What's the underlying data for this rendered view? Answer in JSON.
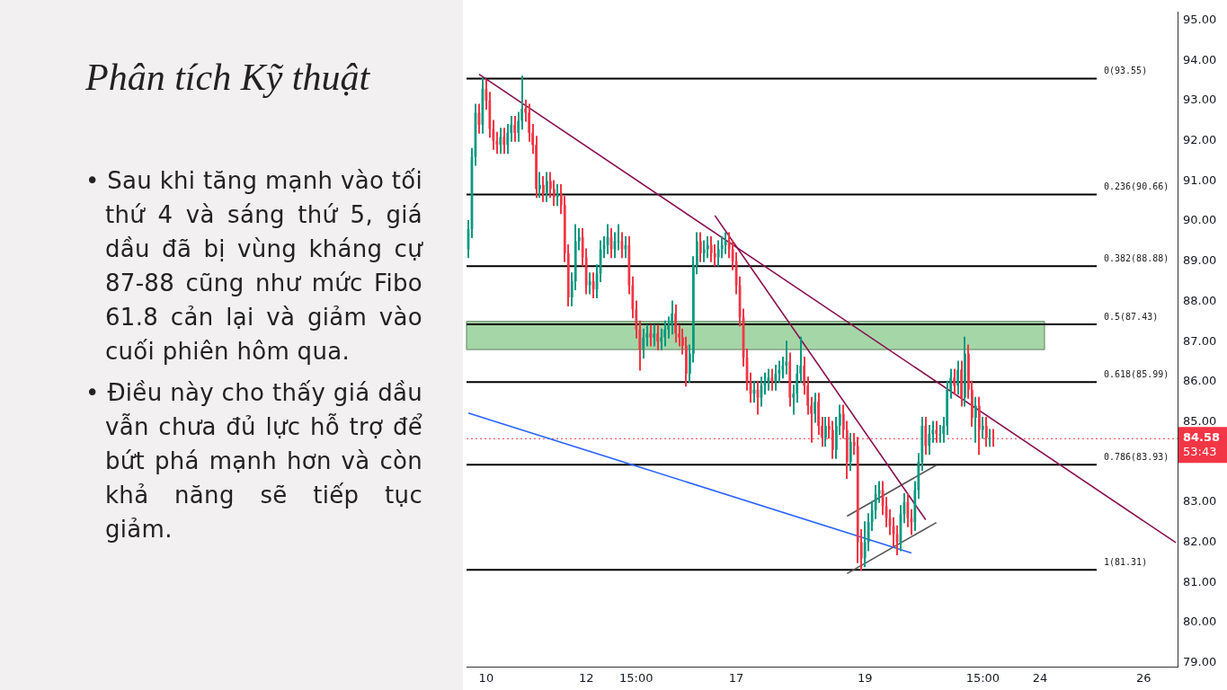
{
  "chart_data": {
    "type": "candlestick",
    "title": "Phân tích Kỹ thuật",
    "annotations": [
      "• Sau khi tăng mạnh vào tối thứ 4 và sáng thứ 5, giá dầu đã bị vùng kháng cự 87-88 cũng như mức Fibo 61.8 cản lại và giảm vào cuối phiên hôm qua.",
      "• Điều này cho thấy giá dầu vẫn chưa đủ lực hỗ trợ để bứt phá mạnh hơn và còn khả năng sẽ tiếp tục giảm."
    ],
    "categories": [
      null,
      null,
      null,
      null,
      null,
      "10",
      null,
      null,
      null,
      null,
      null,
      null,
      null,
      null,
      null,
      null,
      null,
      null,
      null,
      null,
      null,
      null,
      null,
      null,
      null,
      null,
      null,
      null,
      null,
      null,
      null,
      null,
      null,
      "12",
      null,
      null,
      null,
      null,
      null,
      null,
      null,
      null,
      null,
      null,
      null,
      null,
      null,
      "15:00",
      null,
      null,
      null,
      null,
      null,
      null,
      null,
      null,
      null,
      null,
      null,
      null,
      null,
      null,
      null,
      null,
      null,
      null,
      null,
      null,
      null,
      null,
      null,
      null,
      null,
      null,
      null,
      "17",
      null,
      null,
      null,
      null,
      null,
      null,
      null,
      null,
      null,
      null,
      null,
      null,
      null,
      null,
      null,
      null,
      null,
      null,
      null,
      null,
      null,
      null,
      null,
      null,
      null,
      null,
      null,
      null,
      null,
      null,
      null,
      null,
      null,
      null,
      null,
      "19",
      null,
      null,
      null,
      null,
      null,
      null,
      null,
      null,
      null,
      null,
      null,
      null,
      null,
      null,
      null,
      null,
      null,
      null,
      null,
      null,
      null,
      null,
      null,
      null,
      null,
      null,
      null,
      null,
      null,
      null,
      null,
      null,
      "15:00",
      null,
      null,
      null,
      null,
      null,
      null,
      null,
      null,
      null,
      null,
      null,
      null,
      null,
      null,
      null,
      "24",
      null,
      null,
      null,
      null,
      null,
      null,
      null,
      null,
      null,
      null,
      null,
      null,
      null,
      null,
      null,
      null,
      null,
      null,
      null,
      null,
      null,
      null,
      null,
      null,
      null,
      null,
      null,
      null,
      "26",
      null,
      null,
      null,
      null,
      null,
      null,
      null,
      null,
      null
    ],
    "ohlc": [
      [
        89.3,
        90.0,
        89.1,
        89.8
      ],
      [
        89.8,
        91.8,
        89.6,
        91.6
      ],
      [
        91.6,
        92.9,
        91.4,
        92.7
      ],
      [
        92.7,
        92.9,
        92.2,
        92.4
      ],
      [
        92.4,
        93.55,
        92.2,
        93.3
      ],
      [
        93.3,
        93.5,
        92.8,
        93.0
      ],
      [
        93.0,
        93.2,
        92.1,
        92.3
      ],
      [
        92.3,
        92.5,
        91.8,
        92.0
      ],
      [
        92.0,
        92.2,
        91.7,
        91.9
      ],
      [
        91.9,
        92.3,
        91.7,
        92.1
      ],
      [
        92.1,
        92.3,
        91.7,
        91.9
      ],
      [
        91.9,
        92.4,
        91.7,
        92.2
      ],
      [
        92.2,
        92.6,
        92.0,
        92.4
      ],
      [
        92.4,
        92.6,
        92.0,
        92.2
      ],
      [
        92.2,
        92.7,
        92.0,
        92.5
      ],
      [
        92.5,
        93.6,
        92.3,
        92.8
      ],
      [
        92.8,
        93.0,
        92.5,
        92.7
      ],
      [
        92.7,
        92.9,
        92.0,
        92.2
      ],
      [
        92.2,
        92.4,
        91.7,
        91.9
      ],
      [
        91.9,
        92.1,
        90.6,
        90.8
      ],
      [
        90.8,
        91.2,
        90.6,
        90.9
      ],
      [
        90.9,
        91.1,
        90.5,
        90.7
      ],
      [
        90.7,
        91.2,
        90.5,
        91.0
      ],
      [
        91.0,
        91.2,
        90.6,
        90.8
      ],
      [
        90.8,
        91.0,
        90.4,
        90.6
      ],
      [
        90.6,
        90.9,
        90.4,
        90.7
      ],
      [
        90.7,
        90.9,
        90.2,
        90.4
      ],
      [
        90.4,
        90.6,
        89.0,
        89.2
      ],
      [
        89.2,
        89.4,
        87.9,
        88.1
      ],
      [
        88.1,
        88.7,
        87.9,
        88.5
      ],
      [
        88.5,
        89.9,
        88.3,
        89.5
      ],
      [
        89.5,
        89.8,
        89.3,
        89.6
      ],
      [
        89.6,
        89.8,
        88.9,
        89.1
      ],
      [
        89.1,
        89.3,
        88.2,
        88.4
      ],
      [
        88.4,
        88.7,
        88.2,
        88.5
      ],
      [
        88.5,
        88.7,
        88.1,
        88.3
      ],
      [
        88.3,
        88.9,
        88.1,
        88.7
      ],
      [
        88.7,
        89.5,
        88.5,
        89.3
      ],
      [
        89.3,
        89.6,
        89.1,
        89.4
      ],
      [
        89.4,
        89.9,
        89.2,
        89.6
      ],
      [
        89.6,
        89.8,
        89.1,
        89.3
      ],
      [
        89.3,
        89.7,
        89.1,
        89.5
      ],
      [
        89.5,
        89.9,
        89.3,
        89.5
      ],
      [
        89.5,
        89.7,
        89.1,
        89.3
      ],
      [
        89.3,
        89.6,
        89.1,
        89.4
      ],
      [
        89.4,
        89.6,
        88.2,
        88.4
      ],
      [
        88.4,
        88.6,
        87.6,
        87.8
      ],
      [
        87.8,
        88.0,
        87.1,
        87.3
      ],
      [
        87.3,
        87.5,
        86.3,
        86.8
      ],
      [
        86.8,
        87.3,
        86.6,
        87.1
      ],
      [
        87.1,
        87.4,
        86.9,
        87.2
      ],
      [
        87.2,
        87.4,
        86.9,
        87.1
      ],
      [
        87.1,
        87.4,
        86.9,
        87.2
      ],
      [
        87.2,
        87.4,
        86.8,
        87.0
      ],
      [
        87.0,
        87.3,
        86.8,
        87.1
      ],
      [
        87.1,
        87.5,
        86.9,
        87.3
      ],
      [
        87.3,
        87.6,
        87.1,
        87.4
      ],
      [
        87.4,
        88.0,
        87.2,
        87.7
      ],
      [
        87.7,
        87.9,
        87.0,
        87.2
      ],
      [
        87.2,
        87.4,
        86.9,
        87.1
      ],
      [
        87.1,
        87.3,
        86.7,
        86.9
      ],
      [
        86.9,
        87.1,
        85.9,
        86.2
      ],
      [
        86.2,
        86.9,
        86.0,
        86.7
      ],
      [
        86.7,
        89.1,
        86.5,
        88.9
      ],
      [
        88.9,
        89.7,
        88.7,
        89.5
      ],
      [
        89.5,
        89.7,
        89.0,
        89.2
      ],
      [
        89.2,
        89.5,
        89.0,
        89.3
      ],
      [
        89.3,
        89.6,
        89.1,
        89.4
      ],
      [
        89.4,
        89.6,
        89.0,
        89.2
      ],
      [
        89.2,
        89.4,
        88.9,
        89.1
      ],
      [
        89.1,
        89.5,
        88.9,
        89.3
      ],
      [
        89.3,
        89.6,
        89.1,
        89.4
      ],
      [
        89.4,
        89.7,
        89.2,
        89.5
      ],
      [
        89.5,
        89.7,
        89.1,
        89.3
      ],
      [
        89.3,
        89.5,
        88.8,
        89.0
      ],
      [
        89.0,
        89.2,
        88.2,
        88.4
      ],
      [
        88.4,
        88.6,
        87.4,
        87.6
      ],
      [
        87.6,
        87.8,
        86.4,
        86.6
      ],
      [
        86.6,
        86.8,
        85.8,
        86.0
      ],
      [
        86.0,
        86.2,
        85.5,
        85.7
      ],
      [
        85.7,
        86.0,
        85.5,
        85.8
      ],
      [
        85.8,
        86.0,
        85.2,
        85.6
      ],
      [
        85.6,
        86.1,
        85.4,
        85.9
      ],
      [
        85.9,
        86.2,
        85.7,
        86.0
      ],
      [
        86.0,
        86.3,
        85.8,
        86.1
      ],
      [
        86.1,
        86.3,
        85.8,
        86.0
      ],
      [
        86.0,
        86.4,
        85.8,
        86.2
      ],
      [
        86.2,
        86.5,
        86.0,
        86.3
      ],
      [
        86.3,
        86.6,
        86.1,
        86.4
      ],
      [
        86.4,
        87.0,
        86.2,
        86.5
      ],
      [
        86.5,
        86.7,
        85.4,
        85.6
      ],
      [
        85.6,
        85.9,
        85.2,
        85.7
      ],
      [
        85.7,
        86.4,
        85.5,
        86.2
      ],
      [
        86.2,
        87.1,
        86.0,
        86.4
      ],
      [
        86.4,
        86.6,
        85.7,
        85.9
      ],
      [
        85.9,
        86.1,
        85.2,
        85.4
      ],
      [
        85.4,
        85.6,
        84.5,
        85.2
      ],
      [
        85.2,
        85.7,
        85.0,
        85.5
      ],
      [
        85.5,
        85.7,
        84.7,
        84.9
      ],
      [
        84.9,
        85.1,
        84.4,
        84.6
      ],
      [
        84.6,
        85.1,
        84.4,
        84.9
      ],
      [
        84.9,
        85.1,
        84.6,
        84.8
      ],
      [
        84.8,
        85.0,
        84.1,
        84.3
      ],
      [
        84.3,
        85.1,
        84.1,
        84.9
      ],
      [
        84.9,
        85.4,
        84.7,
        85.2
      ],
      [
        85.2,
        85.4,
        84.6,
        84.8
      ],
      [
        84.8,
        85.0,
        83.6,
        84.0
      ],
      [
        84.0,
        84.7,
        83.8,
        84.5
      ],
      [
        84.5,
        84.7,
        84.2,
        84.4
      ],
      [
        84.4,
        84.6,
        81.5,
        82.0
      ],
      [
        82.0,
        82.3,
        81.31,
        81.6
      ],
      [
        81.6,
        82.5,
        81.4,
        82.0
      ],
      [
        82.0,
        82.7,
        81.8,
        82.5
      ],
      [
        82.5,
        83.0,
        82.3,
        82.8
      ],
      [
        82.8,
        83.4,
        82.6,
        83.2
      ],
      [
        83.2,
        83.5,
        83.0,
        83.3
      ],
      [
        83.3,
        83.5,
        82.7,
        82.9
      ],
      [
        82.9,
        83.1,
        82.4,
        82.6
      ],
      [
        82.6,
        82.8,
        82.2,
        82.4
      ],
      [
        82.4,
        82.6,
        81.9,
        82.2
      ],
      [
        82.2,
        82.4,
        81.7,
        82.0
      ],
      [
        82.0,
        82.9,
        81.8,
        82.7
      ],
      [
        82.7,
        83.2,
        82.5,
        83.0
      ],
      [
        83.0,
        83.2,
        82.4,
        82.6
      ],
      [
        82.6,
        82.8,
        82.2,
        82.5
      ],
      [
        82.5,
        83.5,
        82.3,
        83.3
      ],
      [
        83.3,
        84.2,
        83.1,
        84.0
      ],
      [
        84.0,
        85.1,
        83.8,
        84.9
      ],
      [
        84.9,
        85.1,
        84.2,
        84.4
      ],
      [
        84.4,
        84.9,
        84.2,
        84.7
      ],
      [
        84.7,
        85.0,
        84.5,
        84.8
      ],
      [
        84.8,
        85.0,
        84.5,
        84.7
      ],
      [
        84.7,
        84.9,
        84.5,
        84.7
      ],
      [
        84.7,
        85.1,
        84.5,
        84.9
      ],
      [
        84.9,
        86.0,
        84.7,
        85.8
      ],
      [
        85.8,
        86.3,
        85.6,
        86.1
      ],
      [
        86.1,
        86.3,
        85.7,
        85.9
      ],
      [
        85.9,
        86.5,
        85.7,
        86.3
      ],
      [
        86.3,
        86.5,
        85.4,
        85.6
      ],
      [
        85.6,
        87.1,
        85.4,
        86.7
      ],
      [
        86.7,
        86.9,
        85.6,
        85.8
      ],
      [
        85.8,
        86.0,
        84.9,
        85.1
      ],
      [
        85.1,
        85.6,
        84.5,
        85.4
      ],
      [
        85.4,
        85.6,
        84.2,
        84.8
      ],
      [
        84.8,
        85.1,
        84.6,
        84.9
      ],
      [
        84.9,
        85.1,
        84.4,
        84.6
      ],
      [
        84.6,
        84.8,
        84.4,
        84.6
      ],
      [
        84.6,
        84.8,
        84.4,
        84.58
      ],
      null,
      null,
      null,
      null,
      null,
      null,
      null,
      null,
      null,
      null,
      null,
      null,
      null,
      null,
      null,
      null,
      null,
      null,
      null,
      null,
      null,
      null,
      null,
      null,
      null,
      null,
      null,
      null,
      null,
      null,
      null,
      null,
      null,
      null,
      null,
      null,
      null,
      null,
      null,
      null,
      null,
      null,
      null,
      null,
      null,
      null,
      null,
      null,
      null,
      null,
      null
    ],
    "series": [
      {
        "type": "line",
        "color": "#880e4f",
        "values": [
          null,
          null,
          null,
          93.66,
          null,
          null,
          null,
          null,
          null,
          null,
          null,
          null,
          null,
          null,
          null,
          null,
          null,
          null,
          null,
          null,
          null,
          null,
          null,
          null,
          null,
          null,
          null,
          null,
          null,
          null,
          null,
          null,
          null,
          null,
          null,
          null,
          null,
          null,
          null,
          null,
          null,
          null,
          null,
          null,
          null,
          null,
          null,
          null,
          null,
          null,
          null,
          null,
          null,
          null,
          null,
          null,
          null,
          null,
          null,
          null,
          null,
          null,
          null,
          null,
          null,
          null,
          null,
          null,
          null,
          null,
          null,
          null,
          null,
          null,
          null,
          null,
          null,
          null,
          null,
          null,
          null,
          null,
          null,
          null,
          null,
          null,
          null,
          null,
          null,
          null,
          null,
          null,
          null,
          null,
          null,
          null,
          null,
          null,
          null,
          null,
          null,
          null,
          null,
          null,
          null,
          null,
          null,
          null,
          null,
          null,
          null,
          null,
          null,
          null,
          null,
          null,
          null,
          null,
          null,
          null,
          null,
          null,
          null,
          null,
          null,
          null,
          null,
          null,
          null,
          null,
          null,
          null,
          null,
          null,
          null,
          null,
          null,
          null,
          null,
          null,
          null,
          null,
          null,
          null,
          null,
          null,
          null,
          null,
          null,
          null,
          null,
          null,
          null,
          null,
          null,
          null,
          null,
          null,
          null,
          null,
          null,
          null,
          null,
          null,
          null,
          null,
          null,
          null,
          null,
          null,
          null,
          null,
          null,
          null,
          null,
          null,
          null,
          null,
          null,
          null,
          null,
          null,
          null,
          null,
          null,
          null,
          null,
          null,
          null,
          null,
          null,
          null,
          null,
          null,
          null,
          null,
          null,
          null,
          81.99
        ]
      },
      {
        "type": "line",
        "color": "#880e4f",
        "values": [
          null,
          null,
          null,
          null,
          null,
          null,
          null,
          null,
          null,
          null,
          null,
          null,
          null,
          null,
          null,
          null,
          null,
          null,
          null,
          null,
          null,
          null,
          null,
          null,
          null,
          null,
          null,
          null,
          null,
          null,
          null,
          null,
          null,
          null,
          null,
          null,
          null,
          null,
          null,
          null,
          null,
          null,
          null,
          null,
          null,
          null,
          null,
          null,
          null,
          null,
          null,
          null,
          null,
          null,
          null,
          null,
          null,
          null,
          null,
          null,
          null,
          null,
          null,
          null,
          null,
          null,
          null,
          null,
          null,
          90.14,
          null,
          null,
          null,
          null,
          null,
          null,
          null,
          null,
          null,
          null,
          null,
          null,
          null,
          null,
          null,
          null,
          null,
          null,
          null,
          null,
          null,
          null,
          null,
          null,
          null,
          null,
          null,
          null,
          null,
          null,
          null,
          null,
          null,
          null,
          null,
          null,
          null,
          null,
          null,
          null,
          null,
          null,
          null,
          null,
          null,
          null,
          null,
          null,
          null,
          null,
          null,
          null,
          null,
          null,
          null,
          null,
          null,
          null,
          82.56,
          null,
          null,
          null,
          null,
          null,
          null,
          null,
          null,
          null,
          null,
          null,
          null,
          null,
          null,
          null,
          null,
          null,
          null,
          null,
          null,
          null,
          null,
          null,
          null,
          null,
          null,
          null,
          null,
          null,
          null,
          null,
          null,
          null,
          null,
          null,
          null,
          null,
          null,
          null,
          null,
          null,
          null,
          null,
          null,
          null,
          null,
          null,
          null,
          null,
          null,
          null,
          null,
          null,
          null,
          null,
          null,
          null,
          null,
          null,
          null,
          null,
          null,
          null,
          null,
          null,
          null,
          null,
          null,
          null,
          null
        ]
      },
      {
        "type": "line",
        "color": "#2962ff",
        "values": [
          85.22,
          null,
          null,
          null,
          null,
          null,
          null,
          null,
          null,
          null,
          null,
          null,
          null,
          null,
          null,
          null,
          null,
          null,
          null,
          null,
          null,
          null,
          null,
          null,
          null,
          null,
          null,
          null,
          null,
          null,
          null,
          null,
          null,
          null,
          null,
          null,
          null,
          null,
          null,
          null,
          null,
          null,
          null,
          null,
          null,
          null,
          null,
          null,
          null,
          null,
          null,
          null,
          null,
          null,
          null,
          null,
          null,
          null,
          null,
          null,
          null,
          null,
          null,
          null,
          null,
          null,
          null,
          null,
          null,
          null,
          null,
          null,
          null,
          null,
          null,
          null,
          null,
          null,
          null,
          null,
          null,
          null,
          null,
          null,
          null,
          null,
          null,
          null,
          null,
          null,
          null,
          null,
          null,
          null,
          null,
          null,
          null,
          null,
          null,
          null,
          null,
          null,
          null,
          null,
          null,
          null,
          null,
          null,
          null,
          null,
          null,
          null,
          null,
          null,
          null,
          null,
          null,
          null,
          null,
          null,
          null,
          null,
          null,
          null,
          81.73,
          null,
          null,
          null,
          null,
          null,
          null,
          null,
          null,
          null,
          null,
          null,
          null,
          null,
          null,
          null,
          null,
          null,
          null,
          null,
          null,
          null,
          null,
          null,
          null,
          null,
          null,
          null,
          null,
          null,
          null,
          null,
          null,
          null,
          null,
          null,
          null,
          null,
          null,
          null,
          null,
          null,
          null,
          null,
          null,
          null,
          null,
          null,
          null,
          null,
          null,
          null,
          null,
          null,
          null,
          null,
          null,
          null,
          null,
          null,
          null,
          null,
          null,
          null,
          null,
          null,
          null,
          null,
          null,
          null,
          null,
          null,
          null,
          null,
          null
        ]
      },
      {
        "type": "line",
        "color": "#555555",
        "values": [
          null,
          null,
          null,
          null,
          null,
          null,
          null,
          null,
          null,
          null,
          null,
          null,
          null,
          null,
          null,
          null,
          null,
          null,
          null,
          null,
          null,
          null,
          null,
          null,
          null,
          null,
          null,
          null,
          null,
          null,
          null,
          null,
          null,
          null,
          null,
          null,
          null,
          null,
          null,
          null,
          null,
          null,
          null,
          null,
          null,
          null,
          null,
          null,
          null,
          null,
          null,
          null,
          null,
          null,
          null,
          null,
          null,
          null,
          null,
          null,
          null,
          null,
          null,
          null,
          null,
          null,
          null,
          null,
          null,
          null,
          null,
          null,
          null,
          null,
          null,
          null,
          null,
          null,
          null,
          null,
          null,
          null,
          null,
          null,
          null,
          null,
          null,
          null,
          null,
          null,
          null,
          null,
          null,
          null,
          null,
          null,
          null,
          null,
          null,
          null,
          null,
          null,
          null,
          null,
          null,
          null,
          82.65,
          null,
          null,
          null,
          null,
          null,
          null,
          null,
          null,
          null,
          null,
          null,
          null,
          null,
          null,
          null,
          null,
          null,
          null,
          null,
          null,
          null,
          null,
          null,
          null,
          83.92,
          null,
          null,
          null,
          null,
          null,
          null,
          null,
          null,
          null,
          null,
          null,
          null,
          null,
          null,
          null,
          null,
          null,
          null,
          null,
          null,
          null,
          null,
          null,
          null,
          null,
          null,
          null,
          null,
          null,
          null,
          null,
          null,
          null,
          null,
          null,
          null,
          null,
          null,
          null,
          null,
          null,
          null,
          null,
          null,
          null,
          null,
          null,
          null,
          null,
          null,
          null,
          null,
          null,
          null,
          null,
          null,
          null,
          null,
          null,
          null,
          null,
          null,
          null,
          null,
          null,
          null,
          null
        ]
      },
      {
        "type": "line",
        "color": "#555555",
        "values": [
          null,
          null,
          null,
          null,
          null,
          null,
          null,
          null,
          null,
          null,
          null,
          null,
          null,
          null,
          null,
          null,
          null,
          null,
          null,
          null,
          null,
          null,
          null,
          null,
          null,
          null,
          null,
          null,
          null,
          null,
          null,
          null,
          null,
          null,
          null,
          null,
          null,
          null,
          null,
          null,
          null,
          null,
          null,
          null,
          null,
          null,
          null,
          null,
          null,
          null,
          null,
          null,
          null,
          null,
          null,
          null,
          null,
          null,
          null,
          null,
          null,
          null,
          null,
          null,
          null,
          null,
          null,
          null,
          null,
          null,
          null,
          null,
          null,
          null,
          null,
          null,
          null,
          null,
          null,
          null,
          null,
          null,
          null,
          null,
          null,
          null,
          null,
          null,
          null,
          null,
          null,
          null,
          null,
          null,
          null,
          null,
          null,
          null,
          null,
          null,
          null,
          null,
          null,
          null,
          null,
          null,
          81.22,
          null,
          null,
          null,
          null,
          null,
          null,
          null,
          null,
          null,
          null,
          null,
          null,
          null,
          null,
          null,
          null,
          null,
          null,
          null,
          null,
          null,
          null,
          null,
          null,
          82.49,
          null,
          null,
          null,
          null,
          null,
          null,
          null,
          null,
          null,
          null,
          null,
          null,
          null,
          null,
          null,
          null,
          null,
          null,
          null,
          null,
          null,
          null,
          null,
          null,
          null,
          null,
          null,
          null,
          null,
          null,
          null,
          null,
          null,
          null,
          null,
          null,
          null,
          null,
          null,
          null,
          null,
          null,
          null,
          null,
          null,
          null,
          null,
          null,
          null,
          null,
          null,
          null,
          null,
          null,
          null,
          null,
          null,
          null,
          null,
          null,
          null,
          null,
          null,
          null,
          null,
          null,
          null
        ]
      }
    ],
    "ref_lines": [
      {
        "axis": "y",
        "value": 93.55,
        "label": "0(93.55)",
        "color": "#000000"
      },
      {
        "axis": "y",
        "value": 90.66,
        "label": "0.236(90.66)",
        "color": "#000000"
      },
      {
        "axis": "y",
        "value": 88.88,
        "label": "0.382(88.88)",
        "color": "#000000"
      },
      {
        "axis": "y",
        "value": 87.43,
        "label": "0.5(87.43)",
        "color": "#000000"
      },
      {
        "axis": "y",
        "value": 85.99,
        "label": "0.618(85.99)",
        "color": "#000000"
      },
      {
        "axis": "y",
        "value": 83.93,
        "label": "0.786(83.93)",
        "color": "#000000"
      },
      {
        "axis": "y",
        "value": 81.31,
        "label": "1(81.31)",
        "color": "#000000"
      },
      {
        "axis": "y",
        "value": 84.58,
        "label": "84.58\n53:43",
        "color": "#f23645",
        "line_style": "dotted"
      }
    ],
    "bands": [
      {
        "axis": "y",
        "from": 86.8,
        "to": 87.5,
        "color": "#a5d6a7"
      }
    ],
    "ylim": [
      78.9,
      95.2
    ],
    "yticks": [
      {
        "value": 79,
        "label": "79.00"
      },
      {
        "value": 80,
        "label": "80.00"
      },
      {
        "value": 81,
        "label": "81.00"
      },
      {
        "value": 82,
        "label": "82.00"
      },
      {
        "value": 83,
        "label": "83.00"
      },
      {
        "value": 84,
        "label": null
      },
      {
        "value": 85,
        "label": "85.00"
      },
      {
        "value": 86,
        "label": "86.00"
      },
      {
        "value": 87,
        "label": "87.00"
      },
      {
        "value": 88,
        "label": "88.00"
      },
      {
        "value": 89,
        "label": "89.00"
      },
      {
        "value": 90,
        "label": "90.00"
      },
      {
        "value": 91,
        "label": "91.00"
      },
      {
        "value": 92,
        "label": "92.00"
      },
      {
        "value": 93,
        "label": "93.00"
      },
      {
        "value": 94,
        "label": "94.00"
      },
      {
        "value": 95,
        "label": "95.00"
      }
    ]
  }
}
